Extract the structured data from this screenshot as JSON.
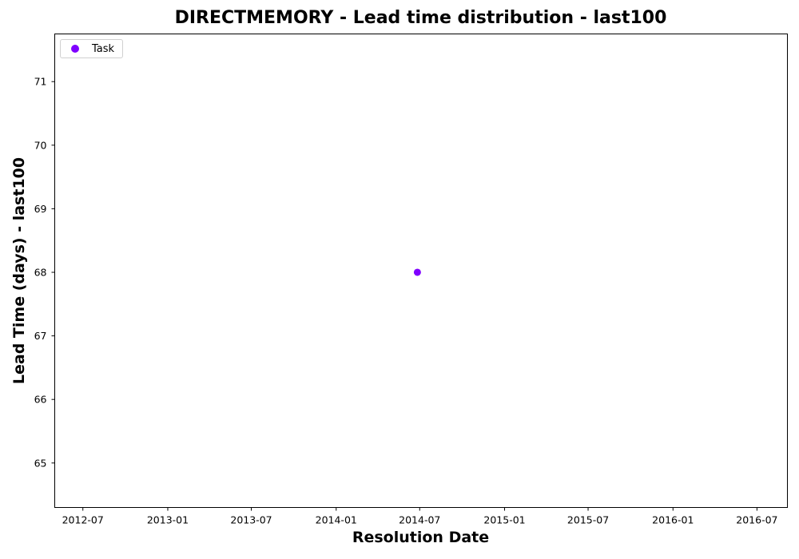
{
  "chart_data": {
    "type": "scatter",
    "title": "DIRECTMEMORY - Lead time distribution - last100",
    "xlabel": "Resolution Date",
    "ylabel": "Lead Time (days) - last100",
    "xlim": [
      "2012-05-01",
      "2016-09-05"
    ],
    "ylim": [
      64.3,
      71.75
    ],
    "x_ticks": [
      "2012-07",
      "2013-01",
      "2013-07",
      "2014-01",
      "2014-07",
      "2015-01",
      "2015-07",
      "2016-01",
      "2016-07"
    ],
    "y_ticks": [
      65,
      66,
      67,
      68,
      69,
      70,
      71
    ],
    "grid": false,
    "legend_position": "top-left",
    "series": [
      {
        "name": "Task",
        "color": "#7f00ff",
        "points": [
          {
            "x": "2014-06-26",
            "y": 68
          }
        ]
      }
    ]
  }
}
